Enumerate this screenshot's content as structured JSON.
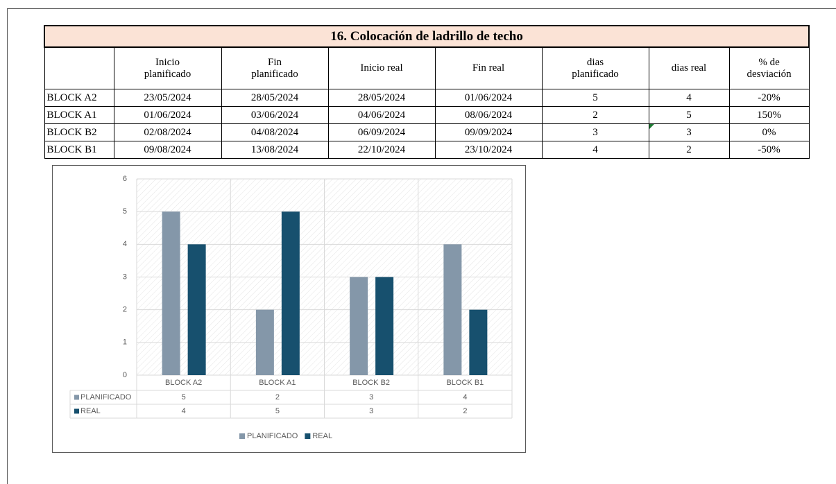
{
  "table": {
    "title": "16. Colocación de ladrillo de techo",
    "header": [
      "Inicio planificado",
      "Fin planificado",
      "Inicio real",
      "Fin real",
      "dias planificado",
      "dias real",
      "% de desviación"
    ],
    "rows": [
      [
        "BLOCK A2",
        "23/05/2024",
        "28/05/2024",
        "28/05/2024",
        "01/06/2024",
        "5",
        "4",
        "-20%"
      ],
      [
        "BLOCK A1",
        "01/06/2024",
        "03/06/2024",
        "04/06/2024",
        "08/06/2024",
        "2",
        "5",
        "150%"
      ],
      [
        "BLOCK B2",
        "02/08/2024",
        "04/08/2024",
        "06/09/2024",
        "09/09/2024",
        "3",
        "3",
        "0%"
      ],
      [
        "BLOCK B1",
        "09/08/2024",
        "13/08/2024",
        "22/10/2024",
        "23/10/2024",
        "4",
        "2",
        "-50%"
      ]
    ]
  },
  "chart_data": {
    "type": "bar",
    "categories": [
      "BLOCK A2",
      "BLOCK A1",
      "BLOCK B2",
      "BLOCK B1"
    ],
    "series": [
      {
        "name": "PLANIFICADO",
        "color": "#8497a9",
        "values": [
          5,
          2,
          3,
          4
        ]
      },
      {
        "name": "REAL",
        "color": "#17506e",
        "values": [
          4,
          5,
          3,
          2
        ]
      }
    ],
    "ylim": [
      0,
      6
    ],
    "yticks": [
      0,
      1,
      2,
      3,
      4,
      5,
      6
    ],
    "grid": true,
    "legend": "bottom"
  }
}
